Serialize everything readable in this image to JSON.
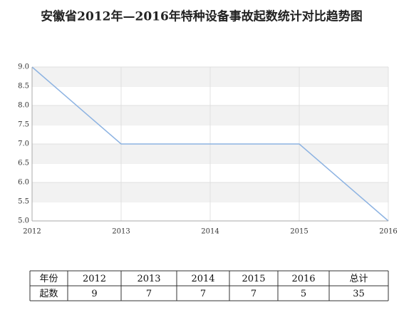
{
  "chart_data": {
    "type": "line",
    "title": "安徽省2012年—2016年特种设备事故起数统计对比趋势图",
    "x": [
      2012,
      2013,
      2014,
      2015,
      2016
    ],
    "series": [
      {
        "name": "起数",
        "color": "#8db3e2",
        "values": [
          9,
          7,
          7,
          7,
          5
        ]
      }
    ],
    "xlim": [
      2012,
      2016
    ],
    "xticks": [
      2012,
      2013,
      2014,
      2015,
      2016
    ],
    "ylim": [
      5,
      9
    ],
    "yticks": [
      {
        "value": 5,
        "label": "5.0"
      },
      {
        "value": 5.5,
        "label": "5.5"
      },
      {
        "value": 6,
        "label": "6.0"
      },
      {
        "value": 6.5,
        "label": "6.5"
      },
      {
        "value": 7,
        "label": "7.0"
      },
      {
        "value": 7.5,
        "label": "7.5"
      },
      {
        "value": 8,
        "label": "8.0"
      },
      {
        "value": 8.5,
        "label": "8.5"
      },
      {
        "value": 9,
        "label": "9.0"
      }
    ],
    "grid": true,
    "band_color": "#f2f2f2"
  },
  "table": {
    "header": [
      "年份",
      "2012",
      "2013",
      "2014",
      "2015",
      "2016",
      "总计"
    ],
    "rows": [
      [
        "起数",
        "9",
        "7",
        "7",
        "7",
        "5",
        "35"
      ]
    ]
  }
}
